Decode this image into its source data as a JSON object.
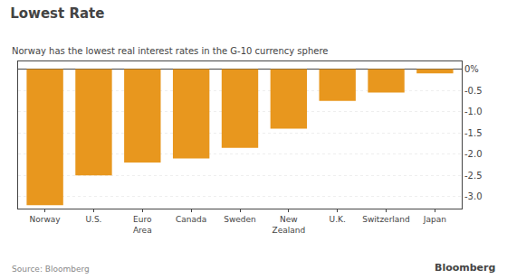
{
  "chart_data": {
    "type": "bar",
    "title": "Lowest Rate",
    "subtitle": "Norway has the lowest real interest rates in the G-10 currency sphere",
    "annotations": [
      "Source: Bloomberg",
      "Bloomberg"
    ],
    "categories": [
      "Norway",
      "U.S.",
      "Euro\nArea",
      "Canada",
      "Sweden",
      "New\nZealand",
      "U.K.",
      "Switzerland",
      "Japan"
    ],
    "values": [
      -3.2,
      -2.5,
      -2.2,
      -2.1,
      -1.85,
      -1.4,
      -0.75,
      -0.55,
      -0.1
    ],
    "color": "#E8971E",
    "ylim": [
      -3.28,
      0.18
    ],
    "yticks": [
      {
        "value": 0,
        "label": "0%"
      },
      -0.5,
      {
        "value": -1.0,
        "label": "-1.0"
      },
      -1.5,
      {
        "value": -2.0,
        "label": "-2.0"
      },
      -2.5,
      {
        "value": -3.0,
        "label": "-3.0"
      }
    ],
    "grid": true
  }
}
